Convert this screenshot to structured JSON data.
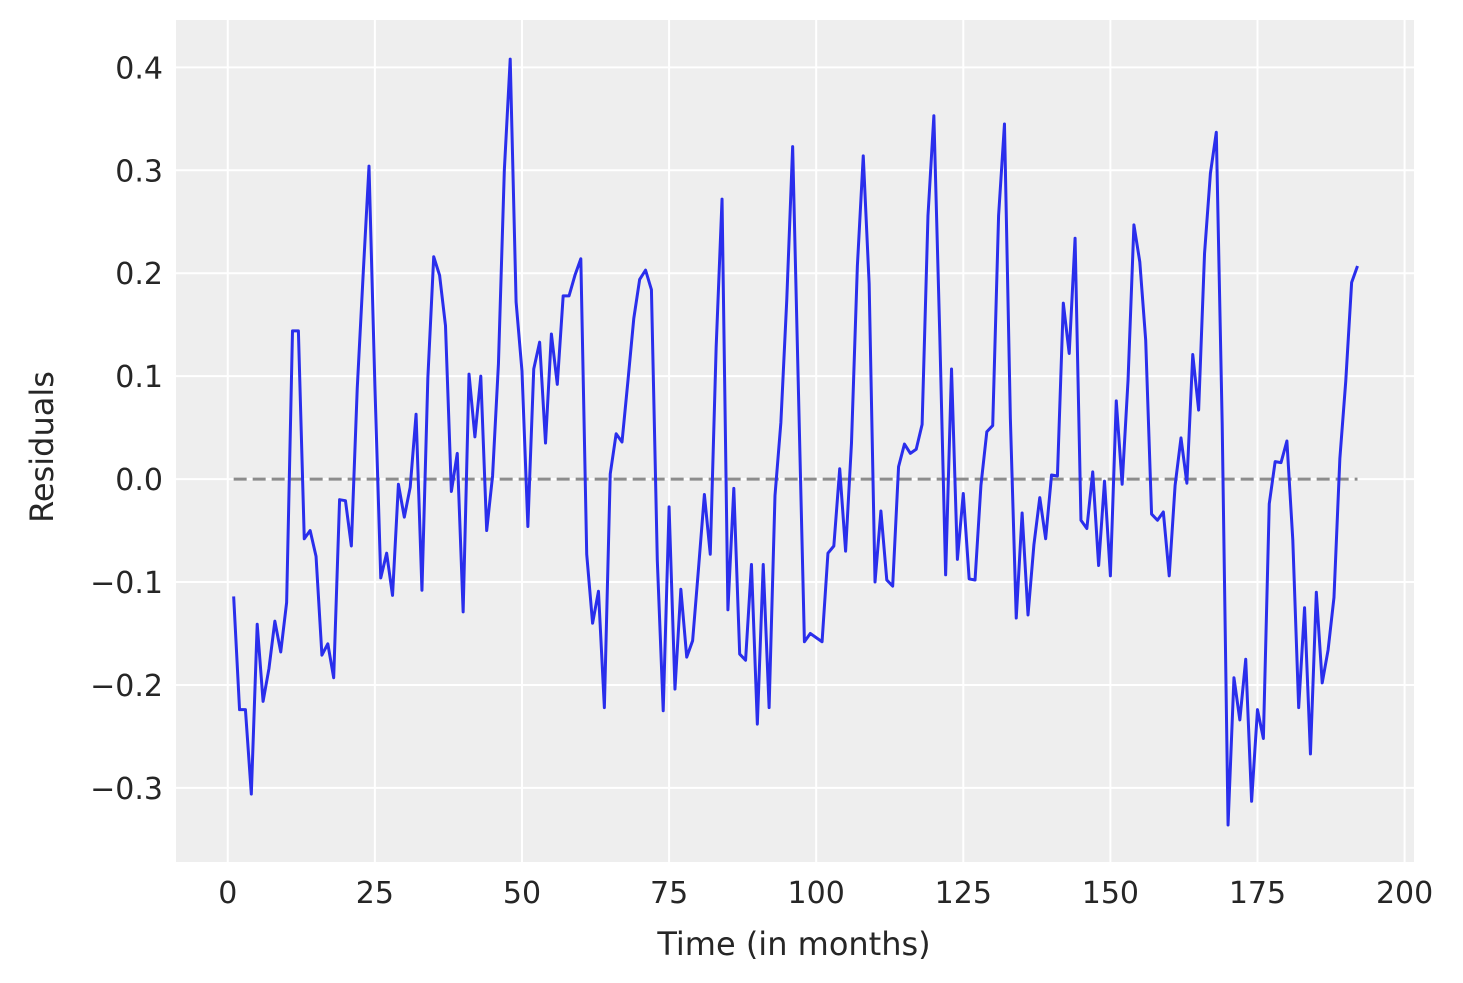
{
  "chart_data": {
    "type": "line",
    "title": "",
    "xlabel": "Time (in months)",
    "ylabel": "Residuals",
    "xlim": [
      -8.8,
      201.6
    ],
    "ylim": [
      -0.372,
      0.446
    ],
    "xticks": [
      0,
      25,
      50,
      75,
      100,
      125,
      150,
      175,
      200
    ],
    "xtick_labels": [
      "0",
      "25",
      "50",
      "75",
      "100",
      "125",
      "150",
      "175",
      "200"
    ],
    "yticks": [
      -0.3,
      -0.2,
      -0.1,
      0.0,
      0.1,
      0.2,
      0.3,
      0.4
    ],
    "ytick_labels": [
      "−0.3",
      "−0.2",
      "−0.1",
      "0.0",
      "0.1",
      "0.2",
      "0.3",
      "0.4"
    ],
    "grid": true,
    "background": "#eeeeee",
    "grid_color": "#ffffff",
    "series": [
      {
        "color": "#2a2eec",
        "x": [
          1,
          2,
          3,
          4,
          5,
          6,
          7,
          8,
          9,
          10,
          11,
          12,
          13,
          14,
          15,
          16,
          17,
          18,
          19,
          20,
          21,
          22,
          23,
          24,
          25,
          26,
          27,
          28,
          29,
          30,
          31,
          32,
          33,
          34,
          35,
          36,
          37,
          38,
          39,
          40,
          41,
          42,
          43,
          44,
          45,
          46,
          47,
          48,
          49,
          50,
          51,
          52,
          53,
          54,
          55,
          56,
          57,
          58,
          59,
          60,
          61,
          62,
          63,
          64,
          65,
          66,
          67,
          68,
          69,
          70,
          71,
          72,
          73,
          74,
          75,
          76,
          77,
          78,
          79,
          80,
          81,
          82,
          83,
          84,
          85,
          86,
          87,
          88,
          89,
          90,
          91,
          92,
          93,
          94,
          95,
          96,
          97,
          98,
          99,
          100,
          101,
          102,
          103,
          104,
          105,
          106,
          107,
          108,
          109,
          110,
          111,
          112,
          113,
          114,
          115,
          116,
          117,
          118,
          119,
          120,
          121,
          122,
          123,
          124,
          125,
          126,
          127,
          128,
          129,
          130,
          131,
          132,
          133,
          134,
          135,
          136,
          137,
          138,
          139,
          140,
          141,
          142,
          143,
          144,
          145,
          146,
          147,
          148,
          149,
          150,
          151,
          152,
          153,
          154,
          155,
          156,
          157,
          158,
          159,
          160,
          161,
          162,
          163,
          164,
          165,
          166,
          167,
          168,
          169,
          170,
          171,
          172,
          173,
          174,
          175,
          176,
          177,
          178,
          179,
          180,
          181,
          182,
          183,
          184,
          185,
          186,
          187,
          188,
          189,
          190,
          191,
          192
        ],
        "y": [
          -0.114,
          -0.224,
          -0.224,
          -0.306,
          -0.141,
          -0.216,
          -0.184,
          -0.138,
          -0.168,
          -0.12,
          0.144,
          0.144,
          -0.058,
          -0.05,
          -0.075,
          -0.171,
          -0.16,
          -0.193,
          -0.02,
          -0.021,
          -0.065,
          0.088,
          0.198,
          0.304,
          0.091,
          -0.096,
          -0.072,
          -0.113,
          -0.005,
          -0.037,
          -0.008,
          0.063,
          -0.108,
          0.098,
          0.216,
          0.198,
          0.149,
          -0.012,
          0.025,
          -0.129,
          0.102,
          0.041,
          0.1,
          -0.05,
          0.003,
          0.112,
          0.3,
          0.408,
          0.172,
          0.105,
          -0.046,
          0.107,
          0.133,
          0.035,
          0.141,
          0.092,
          0.178,
          0.178,
          0.198,
          0.214,
          -0.073,
          -0.14,
          -0.109,
          -0.222,
          0.005,
          0.044,
          0.036,
          0.095,
          0.156,
          0.194,
          0.203,
          0.184,
          -0.079,
          -0.225,
          -0.027,
          -0.204,
          -0.107,
          -0.173,
          -0.157,
          -0.087,
          -0.015,
          -0.073,
          0.128,
          0.272,
          -0.127,
          -0.009,
          -0.17,
          -0.176,
          -0.083,
          -0.238,
          -0.083,
          -0.222,
          -0.016,
          0.055,
          0.174,
          0.323,
          0.082,
          -0.158,
          -0.15,
          -0.154,
          -0.158,
          -0.072,
          -0.065,
          0.01,
          -0.07,
          0.035,
          0.207,
          0.314,
          0.19,
          -0.1,
          -0.031,
          -0.098,
          -0.104,
          0.012,
          0.034,
          0.025,
          0.029,
          0.053,
          0.256,
          0.353,
          0.141,
          -0.093,
          0.107,
          -0.078,
          -0.014,
          -0.097,
          -0.098,
          -0.006,
          0.046,
          0.052,
          0.256,
          0.345,
          0.059,
          -0.135,
          -0.033,
          -0.132,
          -0.064,
          -0.018,
          -0.058,
          0.004,
          0.003,
          0.171,
          0.122,
          0.234,
          -0.04,
          -0.048,
          0.007,
          -0.084,
          -0.002,
          -0.094,
          0.076,
          -0.005,
          0.096,
          0.247,
          0.211,
          0.135,
          -0.034,
          -0.04,
          -0.032,
          -0.094,
          -0.006,
          0.04,
          -0.004,
          0.121,
          0.067,
          0.219,
          0.297,
          0.337,
          0.054,
          -0.336,
          -0.193,
          -0.234,
          -0.175,
          -0.313,
          -0.224,
          -0.252,
          -0.024,
          0.017,
          0.016,
          0.037,
          -0.059,
          -0.222,
          -0.125,
          -0.267,
          -0.11,
          -0.198,
          -0.166,
          -0.115,
          0.02,
          0.095,
          0.191,
          0.207
        ]
      },
      {
        "color": "#8c8c8c",
        "style": "dashed",
        "x": [
          1,
          192
        ],
        "y": [
          0.0,
          0.0
        ]
      }
    ]
  }
}
